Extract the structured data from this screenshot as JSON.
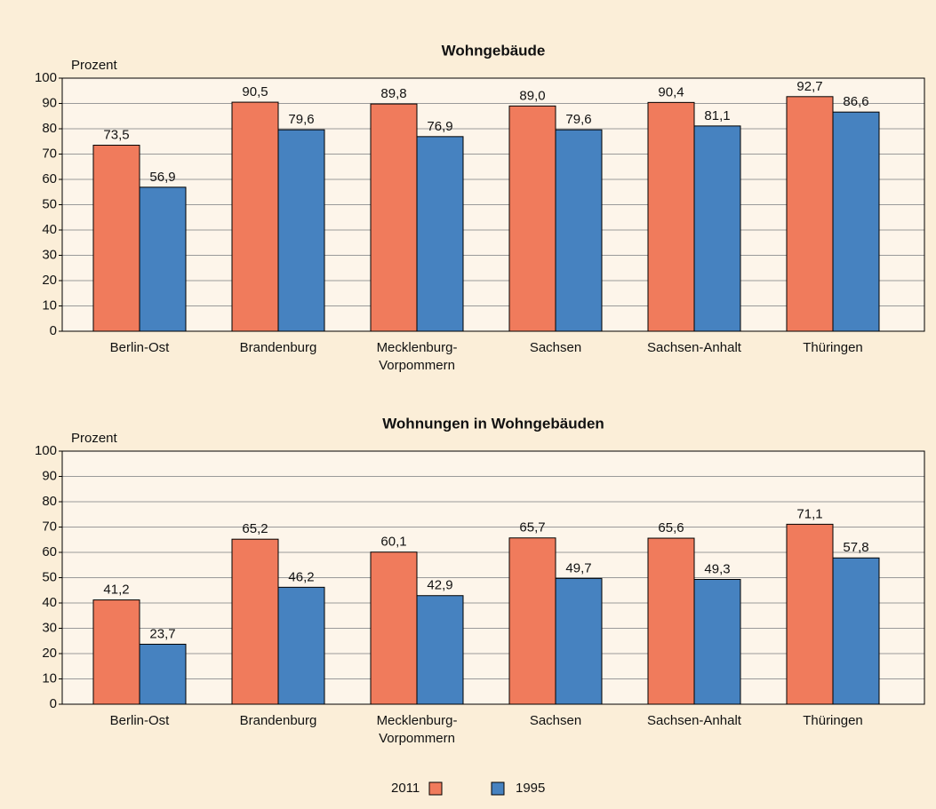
{
  "chart_data": [
    {
      "type": "bar",
      "title": "Wohngebäude",
      "y_label": "Prozent",
      "categories": [
        "Berlin-Ost",
        "Brandenburg",
        "Mecklenburg-Vorpommern",
        "Sachsen",
        "Sachsen-Anhalt",
        "Thüringen"
      ],
      "series": [
        {
          "name": "2011",
          "color": "#f07b5c",
          "values": [
            73.5,
            90.5,
            89.8,
            89.0,
            90.4,
            92.7
          ],
          "value_labels": [
            "73,5",
            "90,5",
            "89,8",
            "89,0",
            "90,4",
            "92,7"
          ]
        },
        {
          "name": "1995",
          "color": "#4682c0",
          "values": [
            56.9,
            79.6,
            76.9,
            79.6,
            81.1,
            86.6
          ],
          "value_labels": [
            "56,9",
            "79,6",
            "76,9",
            "79,6",
            "81,1",
            "86,6"
          ]
        }
      ],
      "ylim": [
        0,
        100
      ],
      "yticks": [
        0,
        10,
        20,
        30,
        40,
        50,
        60,
        70,
        80,
        90,
        100
      ],
      "grid": true
    },
    {
      "type": "bar",
      "title": "Wohnungen in Wohngebäuden",
      "y_label": "Prozent",
      "categories": [
        "Berlin-Ost",
        "Brandenburg",
        "Mecklenburg-Vorpommern",
        "Sachsen",
        "Sachsen-Anhalt",
        "Thüringen"
      ],
      "series": [
        {
          "color": "#f07b5c",
          "values": [
            41.2,
            65.2,
            60.1,
            65.7,
            65.6,
            71.1
          ],
          "value_labels": [
            "41,2",
            "65,2",
            "60,1",
            "65,7",
            "65,6",
            "71,1"
          ]
        },
        {
          "color": "#4682c0",
          "values": [
            23.7,
            46.2,
            42.9,
            49.7,
            49.3,
            57.8
          ],
          "value_labels": [
            "23,7",
            "46,2",
            "42,9",
            "49,7",
            "49,3",
            "57,8"
          ]
        }
      ],
      "ylim": [
        0,
        100
      ],
      "yticks": [
        0,
        10,
        20,
        30,
        40,
        50,
        60,
        70,
        80,
        90,
        100
      ],
      "grid": true
    }
  ]
}
